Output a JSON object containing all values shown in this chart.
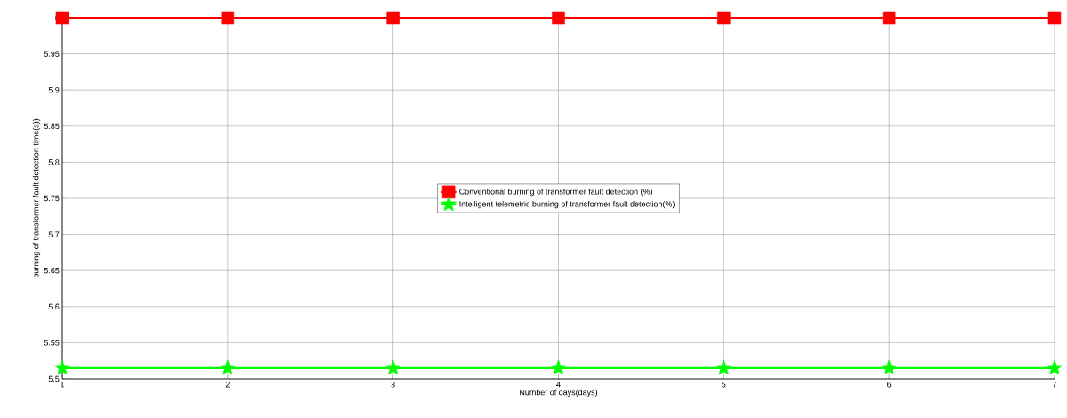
{
  "chart_data": {
    "type": "line",
    "xlabel": "Number of days(days)",
    "ylabel": "burning of transformer fault detection time(s))",
    "x": [
      1,
      2,
      3,
      4,
      5,
      6,
      7
    ],
    "series": [
      {
        "name": "Conventional burning of transformer fault detection (%)",
        "color": "#ff0000",
        "marker": "square",
        "values": [
          6,
          6,
          6,
          6,
          6,
          6,
          6
        ]
      },
      {
        "name": "Intelligent telemetric burning of transformer fault detection(%)",
        "color": "#00ff00",
        "marker": "star",
        "values": [
          5.515,
          5.515,
          5.515,
          5.515,
          5.515,
          5.515,
          5.515
        ]
      }
    ],
    "xlim": [
      1,
      7
    ],
    "xticks": [
      1,
      2,
      3,
      4,
      5,
      6,
      7
    ],
    "ylim": [
      5.5,
      6
    ],
    "yticks": [
      5.5,
      5.55,
      5.6,
      5.65,
      5.7,
      5.75,
      5.8,
      5.85,
      5.9,
      5.95,
      6
    ],
    "grid": true,
    "legend": "center",
    "line_style": "solid"
  }
}
